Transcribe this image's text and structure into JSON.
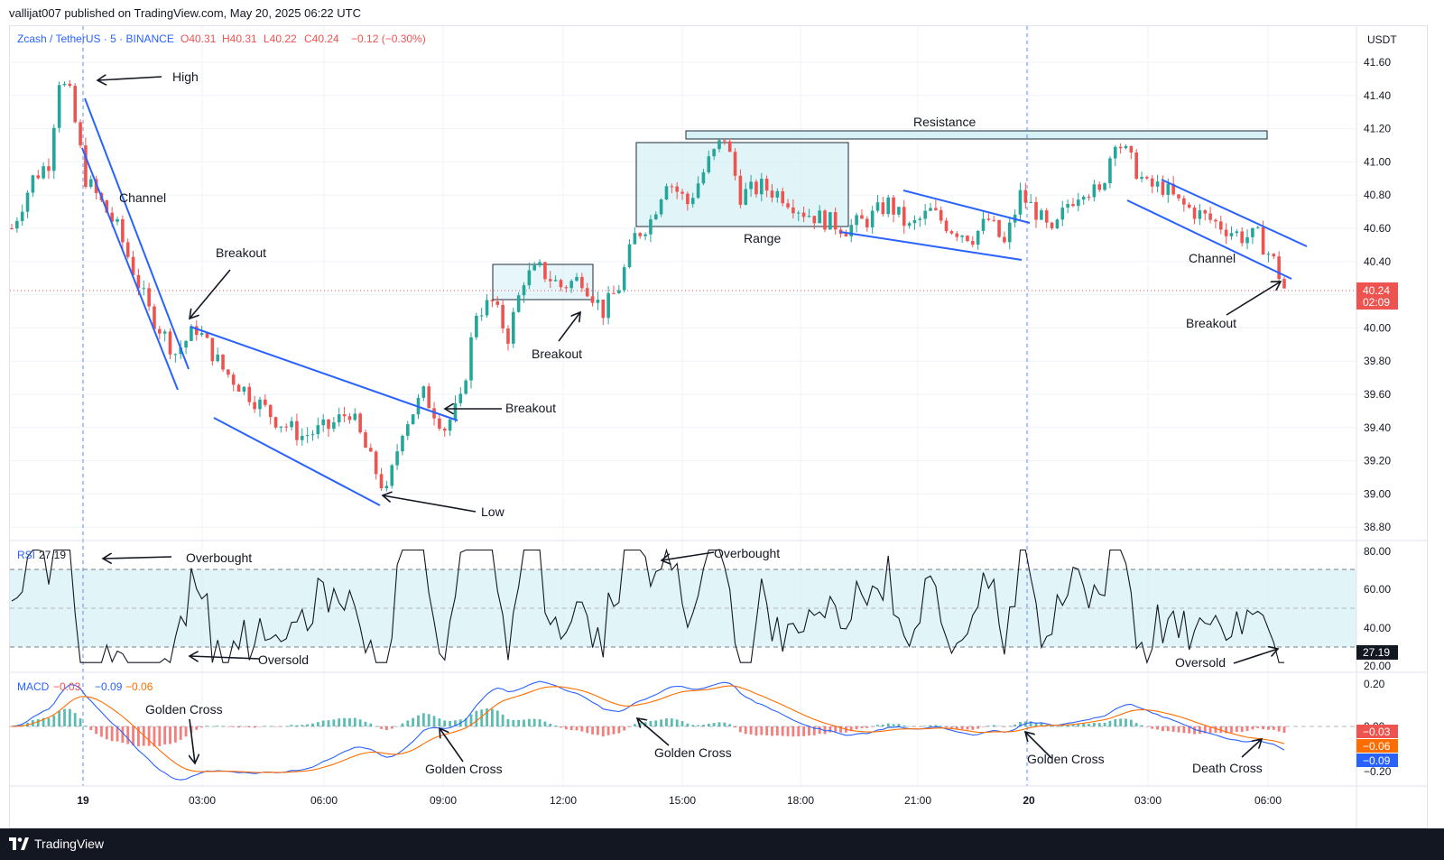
{
  "header": {
    "published": "vallijat007 published on TradingView.com, May 20, 2025 06:22 UTC"
  },
  "legend": {
    "symbol": "Zcash / TetherUS · 5 · BINANCE",
    "open": "O40.31",
    "high": "H40.31",
    "low": "L40.22",
    "close": "C40.24",
    "change": "−0.12 (−0.30%)"
  },
  "currency": "USDT",
  "last_price": {
    "value": "40.24",
    "countdown": "02:09"
  },
  "rsi": {
    "label": "RSI",
    "value": "27.19",
    "axis": [
      "80.00",
      "60.00",
      "40.00",
      "20.00"
    ]
  },
  "macd": {
    "label": "MACD",
    "v1": "−0.03",
    "v2": "−0.09",
    "v3": "−0.06",
    "axis_top": "0.20",
    "axis_mid": "0.00",
    "axis_bottom": "−0.20",
    "tags": [
      "−0.03",
      "−0.06",
      "−0.09"
    ]
  },
  "footer": {
    "brand": "TradingView"
  },
  "colors": {
    "up": "#26a69a",
    "down": "#ef5350",
    "accent": "#2962ff",
    "annot": "#131722"
  },
  "chart_data": {
    "type": "candlestick",
    "y_ticks": [
      "41.60",
      "41.40",
      "41.20",
      "41.00",
      "40.80",
      "40.60",
      "40.40",
      "40.20",
      "40.00",
      "39.80",
      "39.60",
      "39.40",
      "39.20",
      "39.00",
      "38.80"
    ],
    "ylim": [
      38.75,
      41.68
    ],
    "x_ticks": [
      "19",
      "03:00",
      "06:00",
      "09:00",
      "12:00",
      "15:00",
      "18:00",
      "21:00",
      "20",
      "03:00",
      "06:00"
    ],
    "price_path": [
      [
        0,
        40.6
      ],
      [
        4,
        40.9
      ],
      [
        7,
        41.0
      ],
      [
        9,
        41.5
      ],
      [
        11,
        41.4
      ],
      [
        14,
        40.9
      ],
      [
        20,
        40.6
      ],
      [
        26,
        40.1
      ],
      [
        31,
        39.85
      ],
      [
        35,
        40.0
      ],
      [
        40,
        39.75
      ],
      [
        45,
        39.6
      ],
      [
        50,
        39.45
      ],
      [
        55,
        39.35
      ],
      [
        60,
        39.4
      ],
      [
        64,
        39.5
      ],
      [
        68,
        39.2
      ],
      [
        71,
        39.0
      ],
      [
        74,
        39.4
      ],
      [
        78,
        39.6
      ],
      [
        82,
        39.4
      ],
      [
        85,
        39.55
      ],
      [
        88,
        40.1
      ],
      [
        91,
        40.15
      ],
      [
        94,
        39.95
      ],
      [
        97,
        40.3
      ],
      [
        100,
        40.35
      ],
      [
        104,
        40.25
      ],
      [
        108,
        40.3
      ],
      [
        112,
        40.1
      ],
      [
        115,
        40.25
      ],
      [
        118,
        40.55
      ],
      [
        121,
        40.65
      ],
      [
        124,
        40.9
      ],
      [
        128,
        40.75
      ],
      [
        132,
        41.0
      ],
      [
        135,
        41.15
      ],
      [
        138,
        40.8
      ],
      [
        142,
        40.85
      ],
      [
        146,
        40.8
      ],
      [
        150,
        40.7
      ],
      [
        154,
        40.65
      ],
      [
        158,
        40.6
      ],
      [
        162,
        40.65
      ],
      [
        166,
        40.75
      ],
      [
        170,
        40.6
      ],
      [
        174,
        40.7
      ],
      [
        178,
        40.6
      ],
      [
        182,
        40.55
      ],
      [
        185,
        40.65
      ],
      [
        188,
        40.5
      ],
      [
        191,
        40.8
      ],
      [
        194,
        40.7
      ],
      [
        197,
        40.55
      ],
      [
        200,
        40.75
      ],
      [
        203,
        40.85
      ],
      [
        206,
        40.8
      ],
      [
        209,
        41.15
      ],
      [
        212,
        41.0
      ],
      [
        215,
        40.85
      ],
      [
        218,
        40.85
      ],
      [
        221,
        40.75
      ],
      [
        224,
        40.7
      ],
      [
        227,
        40.65
      ],
      [
        230,
        40.6
      ],
      [
        233,
        40.55
      ],
      [
        236,
        40.55
      ],
      [
        239,
        40.4
      ],
      [
        241,
        40.24
      ]
    ],
    "rsi_axis": [
      "80.00",
      "60.00",
      "40.00",
      "20.00"
    ],
    "annotations": [
      "High",
      "Channel",
      "Breakout",
      "Breakout",
      "Low",
      "Breakout",
      "Breakout",
      "Range",
      "Resistance",
      "Channel",
      "Breakout",
      "Overbought",
      "Oversold",
      "Overbought",
      "Oversold",
      "Golden Cross",
      "Golden Cross",
      "Golden Cross",
      "Golden Cross",
      "Death Cross"
    ]
  }
}
